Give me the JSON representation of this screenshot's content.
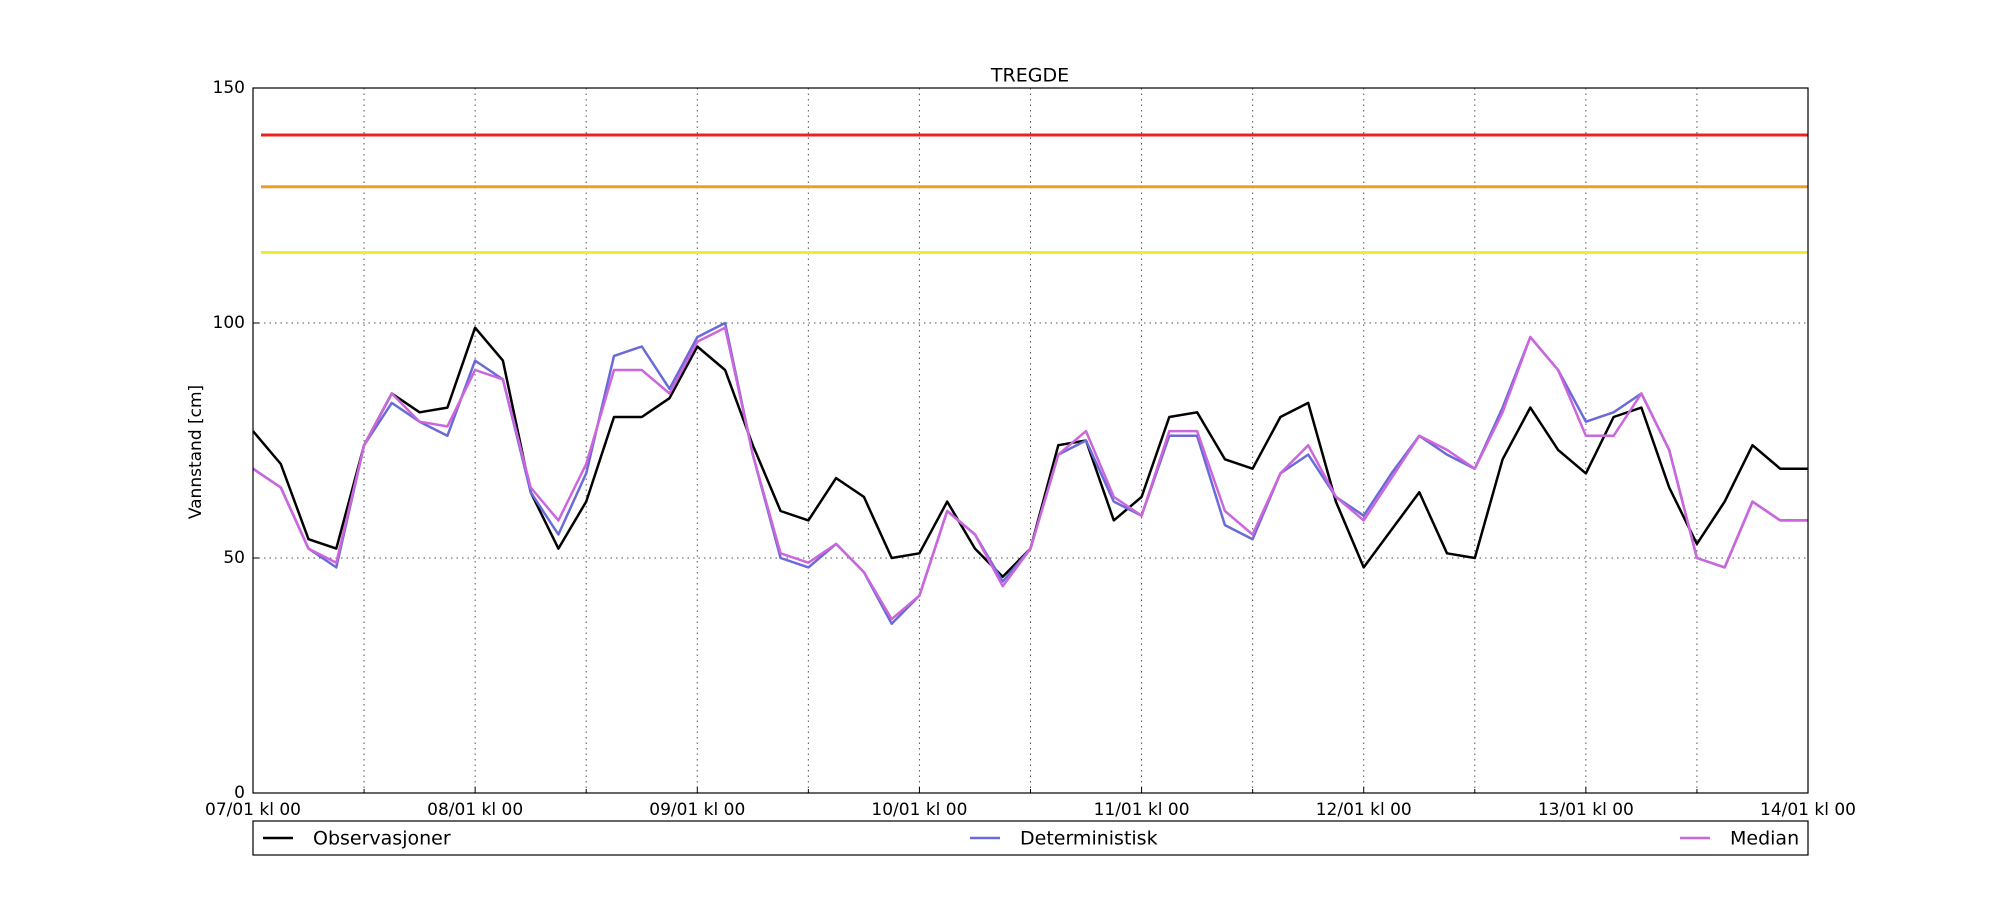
{
  "chart_data": {
    "type": "line",
    "title": "TREGDE",
    "ylabel": "Vannstand [cm]",
    "x": [
      0,
      3,
      6,
      9,
      12,
      15,
      18,
      21,
      24,
      27,
      30,
      33,
      36,
      39,
      42,
      45,
      48,
      51,
      54,
      57,
      60,
      63,
      66,
      69,
      72,
      75,
      78,
      81,
      84,
      87,
      90,
      93,
      96,
      99,
      102,
      105,
      108,
      111,
      114,
      117,
      120,
      123,
      126,
      129,
      132,
      135,
      138,
      141,
      144,
      147,
      150,
      153,
      156,
      159,
      162,
      165,
      168
    ],
    "series": [
      {
        "name": "Observasjoner",
        "color": "#000000",
        "values": [
          77,
          70,
          54,
          52,
          74,
          85,
          81,
          82,
          99,
          92,
          64,
          52,
          62,
          80,
          80,
          84,
          95,
          90,
          74,
          60,
          58,
          67,
          63,
          50,
          51,
          62,
          52,
          46,
          52,
          74,
          75,
          58,
          63,
          80,
          81,
          71,
          69,
          80,
          83,
          62,
          48,
          56,
          64,
          51,
          50,
          71,
          82,
          73,
          68,
          80,
          82,
          65,
          53,
          62,
          74,
          69,
          69
        ]
      },
      {
        "name": "Deterministisk",
        "color": "#6a6ad8",
        "values": [
          69,
          65,
          52,
          48,
          74,
          83,
          79,
          76,
          92,
          88,
          64,
          55,
          68,
          93,
          95,
          86,
          97,
          100,
          72,
          50,
          48,
          53,
          47,
          36,
          42,
          60,
          55,
          45,
          52,
          72,
          75,
          62,
          59,
          76,
          76,
          57,
          54,
          68,
          72,
          63,
          59,
          68,
          76,
          72,
          69,
          82,
          97,
          90,
          79,
          81,
          85,
          73,
          50,
          48,
          62,
          58,
          58
        ]
      },
      {
        "name": "Median",
        "color": "#cc66dd",
        "values": [
          69,
          65,
          52,
          49,
          74,
          85,
          79,
          78,
          90,
          88,
          65,
          58,
          70,
          90,
          90,
          85,
          96,
          99,
          72,
          51,
          49,
          53,
          47,
          37,
          42,
          60,
          55,
          44,
          52,
          72,
          77,
          63,
          59,
          77,
          77,
          60,
          55,
          68,
          74,
          63,
          58,
          67,
          76,
          73,
          69,
          81,
          97,
          90,
          76,
          76,
          85,
          73,
          50,
          48,
          62,
          58,
          58
        ]
      }
    ],
    "thresholds": [
      {
        "value": 140,
        "color": "#ee2222"
      },
      {
        "value": 129,
        "color": "#f0a020"
      },
      {
        "value": 115,
        "color": "#f0f020"
      }
    ],
    "xlim": [
      0,
      168
    ],
    "xticks": [
      {
        "value": 0,
        "label": "07/01 kl 00"
      },
      {
        "value": 24,
        "label": "08/01 kl 00"
      },
      {
        "value": 48,
        "label": "09/01 kl 00"
      },
      {
        "value": 72,
        "label": "10/01 kl 00"
      },
      {
        "value": 96,
        "label": "11/01 kl 00"
      },
      {
        "value": 120,
        "label": "12/01 kl 00"
      },
      {
        "value": 144,
        "label": "13/01 kl 00"
      },
      {
        "value": 168,
        "label": "14/01 kl 00"
      }
    ],
    "xminorticks": [
      12,
      36,
      60,
      84,
      108,
      132,
      156
    ],
    "ylim": [
      0,
      150
    ],
    "yticks": [
      0,
      50,
      100,
      150
    ],
    "grid": true
  }
}
